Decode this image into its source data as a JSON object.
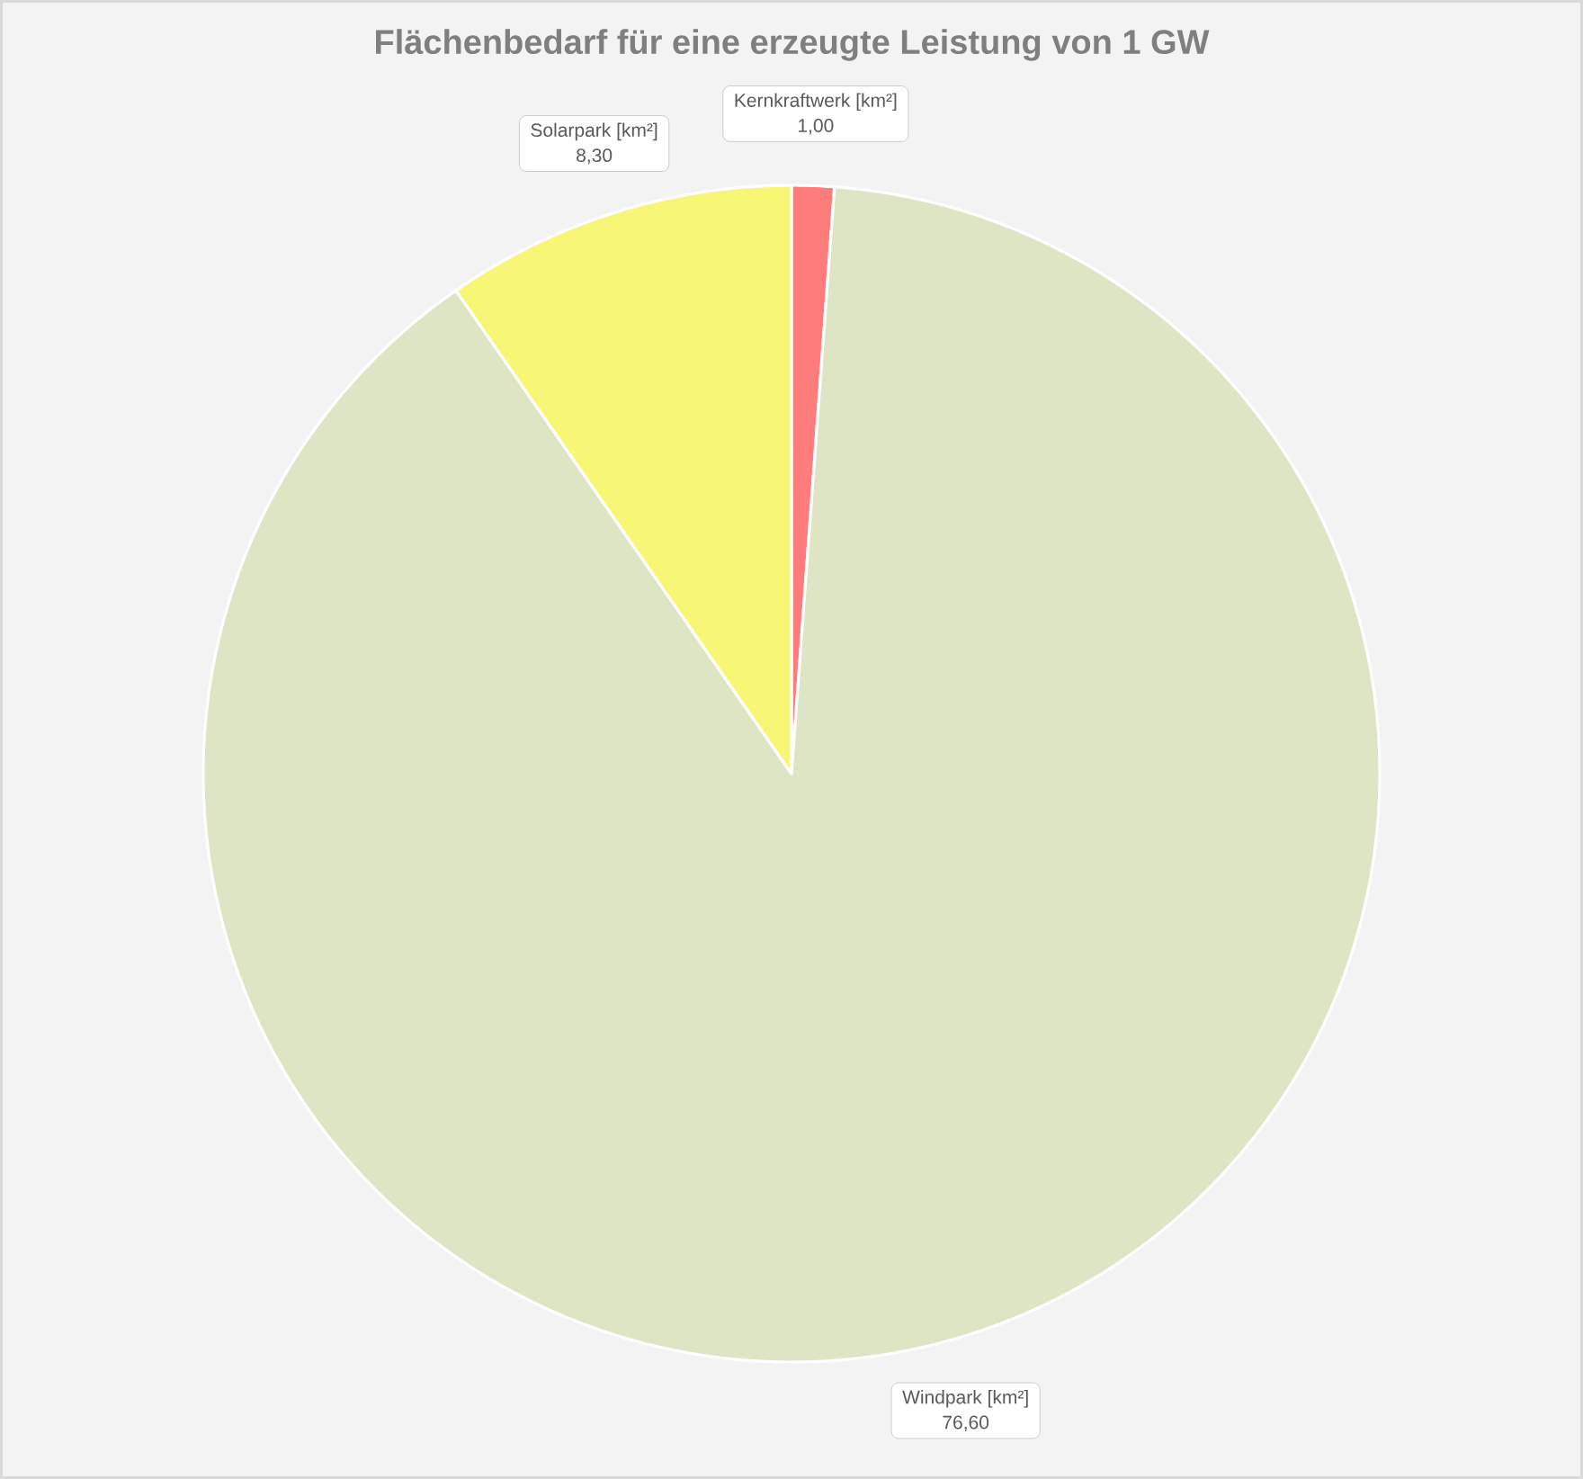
{
  "chart_data": {
    "type": "pie",
    "title": "Flächenbedarf für eine erzeugte Leistung von 1 GW",
    "categories": [
      "Kernkraftwerk [km²]",
      "Windpark [km²]",
      "Solarpark [km²]"
    ],
    "values": [
      1.0,
      76.6,
      8.3
    ],
    "value_labels": [
      "1,00",
      "76,60",
      "8,30"
    ],
    "colors": [
      "#ff7c7c",
      "#dde5c4",
      "#f8f775"
    ]
  }
}
